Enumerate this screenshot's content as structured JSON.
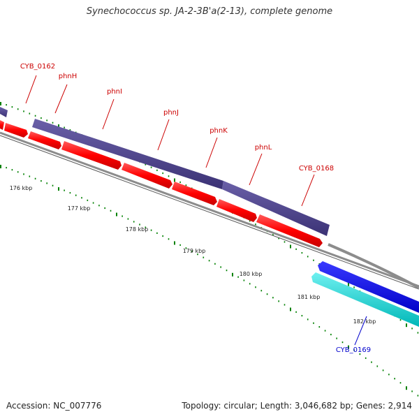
{
  "title": "Synechococcus sp. JA-2-3B'a(2-13), complete genome",
  "accession": "Accession: NC_007776",
  "summary": "Topology: circular; Length: 3,046,682 bp; Genes: 2,914",
  "colors": {
    "forward_gene": "#ff0000",
    "cds_feature": "#4a3f8c",
    "reverse_gene": "#0000ee",
    "reverse_cds": "#00cccc",
    "backbone": "#888888",
    "tick": "#008000",
    "forward_label": "#cc0000",
    "reverse_label": "#0000cc"
  },
  "ruler_labels": [
    "176 kbp",
    "177 kbp",
    "178 kbp",
    "179 kbp",
    "180 kbp",
    "181 kbp",
    "182 kbp"
  ],
  "gene_labels": [
    {
      "text": "CYB_0162",
      "strand": "forward"
    },
    {
      "text": "phnH",
      "strand": "forward"
    },
    {
      "text": "phnI",
      "strand": "forward"
    },
    {
      "text": "phnJ",
      "strand": "forward"
    },
    {
      "text": "phnK",
      "strand": "forward"
    },
    {
      "text": "phnL",
      "strand": "forward"
    },
    {
      "text": "CYB_0168",
      "strand": "forward"
    },
    {
      "text": "CYB_0169",
      "strand": "reverse"
    }
  ]
}
